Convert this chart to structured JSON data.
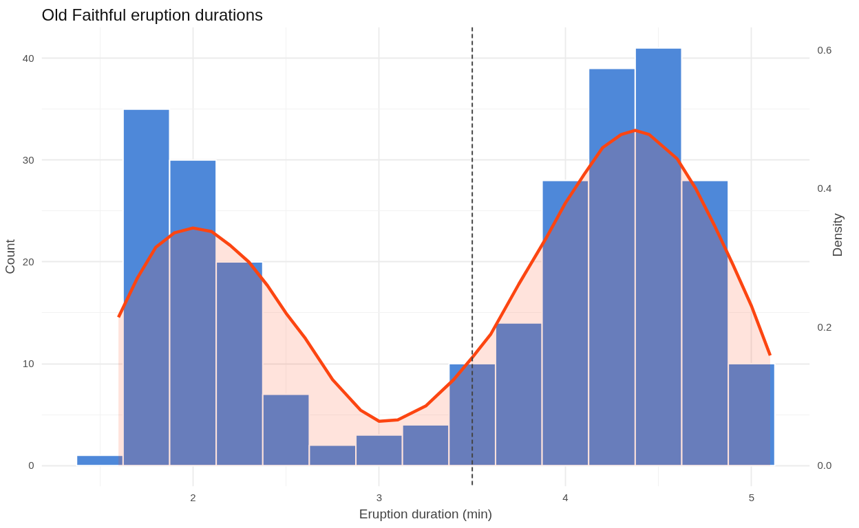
{
  "chart_data": {
    "type": "histogram",
    "title": "Old Faithful eruption durations",
    "xlabel": "Eruption duration (min)",
    "ylabel": "Count",
    "y2label": "Density",
    "series": [
      {
        "color": "#4a86d8",
        "bins": [
          1.375,
          1.625,
          1.875,
          2.125,
          2.375,
          2.625,
          2.875,
          3.125,
          3.375,
          3.625,
          3.875,
          4.125,
          4.375,
          4.625,
          4.875,
          5.125
        ],
        "values": [
          1,
          35,
          30,
          20,
          7,
          2,
          3,
          4,
          10,
          14,
          28,
          39,
          41,
          28,
          10
        ]
      },
      {
        "type": "area",
        "axis": "y2",
        "color": "#fc4511",
        "x": [
          1.6,
          1.7,
          1.8,
          1.9,
          2.0,
          2.1,
          2.2,
          2.3,
          2.4,
          2.5,
          2.6,
          2.75,
          2.9,
          3.0,
          3.1,
          3.25,
          3.4,
          3.5,
          3.6,
          3.75,
          3.9,
          4.0,
          4.1,
          4.2,
          4.3,
          4.375,
          4.45,
          4.6,
          4.7,
          4.8,
          4.9,
          5.0,
          5.1
        ],
        "values": [
          0.214,
          0.27,
          0.315,
          0.336,
          0.343,
          0.338,
          0.318,
          0.294,
          0.26,
          0.22,
          0.185,
          0.124,
          0.08,
          0.064,
          0.066,
          0.086,
          0.124,
          0.156,
          0.19,
          0.262,
          0.33,
          0.379,
          0.42,
          0.459,
          0.478,
          0.484,
          0.478,
          0.443,
          0.4,
          0.347,
          0.29,
          0.23,
          0.159
        ]
      }
    ],
    "xlim": [
      1.1875,
      5.3125
    ],
    "xticks": [
      {
        "value": 1.5,
        "label": null
      },
      2,
      {
        "value": 2.5,
        "label": null
      },
      3,
      {
        "value": 3.5,
        "label": null
      },
      4,
      {
        "value": 4.5,
        "label": null
      },
      5
    ],
    "ylim": [
      -2.05,
      43.05
    ],
    "yticks": [
      0,
      {
        "value": 5,
        "label": null
      },
      10,
      {
        "value": 15,
        "label": null
      },
      20,
      {
        "value": 25,
        "label": null
      },
      30,
      {
        "value": 35,
        "label": null
      },
      40
    ],
    "y2lim": [
      -0.0301,
      0.633
    ],
    "y2ticks": [
      {
        "value": 0,
        "label": "0.0"
      },
      0.2,
      0.4,
      0.6
    ],
    "ref_lines": [
      {
        "axis": "x",
        "value": 3.5,
        "color": "#444444",
        "line_style": "dashed"
      }
    ],
    "grid": true
  }
}
